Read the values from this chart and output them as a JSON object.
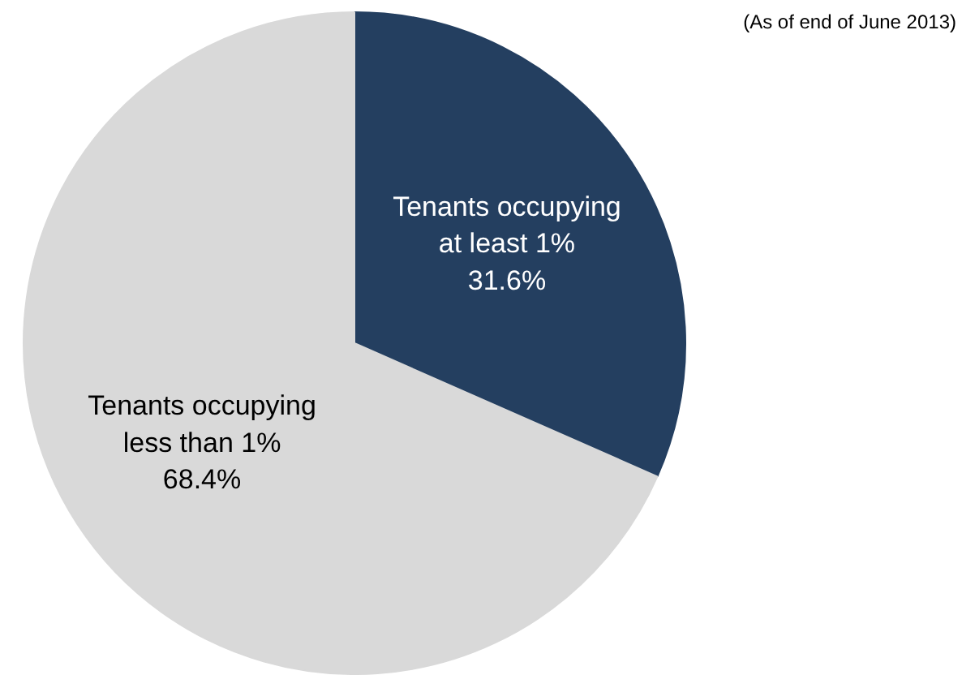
{
  "chart_data": {
    "type": "pie",
    "categories": [
      "Tenants occupying\nat least 1%",
      "Tenants occupying\nless than 1%"
    ],
    "values": [
      31.6,
      68.4
    ],
    "colors": [
      "#243f60",
      "#d9d9d9"
    ],
    "value_labels": [
      "31.6%",
      "68.4%"
    ],
    "annotations": [
      "(As of end of June 2013)"
    ]
  }
}
